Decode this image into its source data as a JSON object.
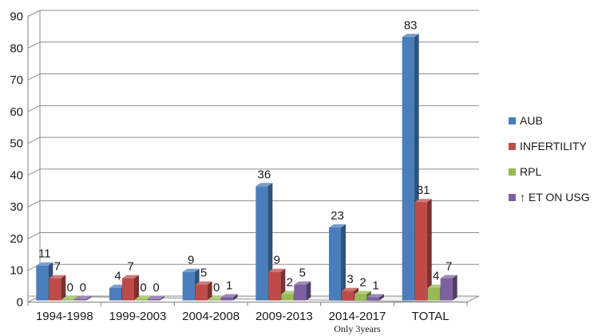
{
  "chart_data": {
    "type": "bar",
    "title": "",
    "xlabel": "",
    "ylabel": "",
    "ylim": [
      0,
      90
    ],
    "yticks": [
      0,
      10,
      20,
      30,
      40,
      50,
      60,
      70,
      80,
      90
    ],
    "grid": true,
    "style": "3d-clustered-column",
    "legend_position": "right",
    "categories": [
      "1994-1998",
      "1999-2003",
      "2004-2008",
      "2009-2013",
      "2014-2017",
      "TOTAL"
    ],
    "category_notes": [
      "",
      "",
      "",
      "",
      "Only 3years",
      ""
    ],
    "series": [
      {
        "name": "AUB",
        "color": "#4a7ebb",
        "values": [
          11,
          4,
          9,
          36,
          23,
          83
        ]
      },
      {
        "name": "INFERTILITY",
        "color": "#be4b48",
        "values": [
          7,
          7,
          5,
          9,
          3,
          31
        ]
      },
      {
        "name": "RPL",
        "color": "#98b954",
        "values": [
          0,
          0,
          0,
          2,
          2,
          4
        ]
      },
      {
        "name": "↑ ET ON USG",
        "color": "#7d60a0",
        "values": [
          0,
          0,
          1,
          5,
          1,
          7
        ]
      }
    ],
    "data_labels": [
      [
        "11",
        "7",
        "0",
        "0"
      ],
      [
        "4",
        "7",
        "0",
        "0"
      ],
      [
        "9",
        "5",
        "0",
        "1"
      ],
      [
        "36",
        "9",
        "2",
        "5"
      ],
      [
        "23",
        "3",
        "2",
        "1"
      ],
      [
        "83",
        "31",
        "4",
        "7"
      ]
    ]
  }
}
